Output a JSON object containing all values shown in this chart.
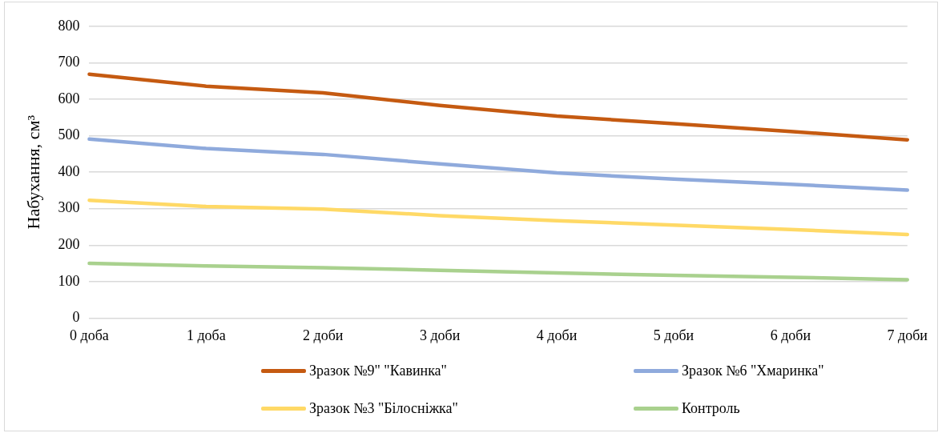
{
  "chart_data": {
    "type": "line",
    "ylabel": "Набухання, см³",
    "categories": [
      "0 доба",
      "1 доба",
      "2 доби",
      "3 доби",
      "4 доби",
      "5 доби",
      "6 доби",
      "7 доби"
    ],
    "series": [
      {
        "name": "Зразок №9\" \"Кавинка\"",
        "color": "#c55a11",
        "values": [
          669,
          636,
          618,
          583,
          554,
          533,
          512,
          489
        ]
      },
      {
        "name": "Зразок №6 \"Хмаринка\"",
        "color": "#8faadc",
        "values": [
          491,
          465,
          449,
          423,
          398,
          381,
          367,
          351
        ]
      },
      {
        "name": "Зразок №3 \"Білосніжка\"",
        "color": "#ffd966",
        "values": [
          323,
          306,
          299,
          281,
          267,
          255,
          243,
          229
        ]
      },
      {
        "name": "Контроль",
        "color": "#a9d18e",
        "values": [
          150,
          143,
          138,
          131,
          124,
          117,
          112,
          105
        ]
      }
    ],
    "ylim": [
      0,
      800
    ],
    "yticks": [
      0,
      100,
      200,
      300,
      400,
      500,
      600,
      700,
      800
    ],
    "grid": "y",
    "legend": "bottom",
    "marker": "none",
    "line_style": "solid"
  }
}
